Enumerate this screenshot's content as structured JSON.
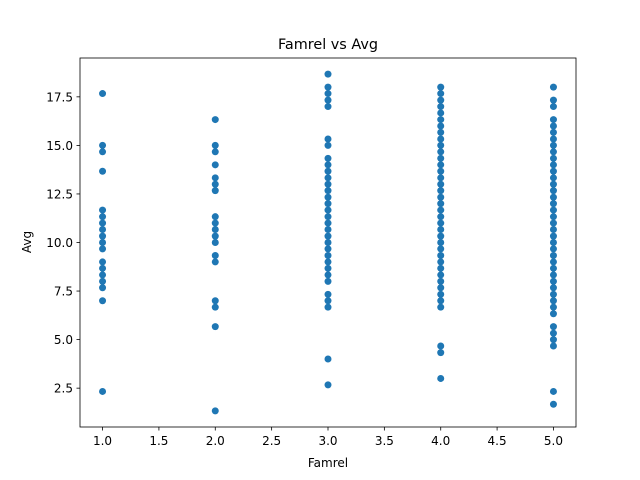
{
  "chart_data": {
    "type": "scatter",
    "title": "Famrel vs Avg",
    "xlabel": "Famrel",
    "ylabel": "Avg",
    "xlim": [
      0.8,
      5.2
    ],
    "ylim": [
      0.5,
      19.5
    ],
    "xticks": [
      "1.0",
      "1.5",
      "2.0",
      "2.5",
      "3.0",
      "3.5",
      "4.0",
      "4.5",
      "5.0"
    ],
    "yticks": [
      "2.5",
      "5.0",
      "7.5",
      "10.0",
      "12.5",
      "15.0",
      "17.5"
    ],
    "grid": false,
    "legend": "none",
    "marker_color": "#1f77b4",
    "series": [
      {
        "points": [
          {
            "x": 1,
            "y": 17.67
          },
          {
            "x": 1,
            "y": 15.0
          },
          {
            "x": 1,
            "y": 14.67
          },
          {
            "x": 1,
            "y": 13.67
          },
          {
            "x": 1,
            "y": 11.67
          },
          {
            "x": 1,
            "y": 11.33
          },
          {
            "x": 1,
            "y": 11.0
          },
          {
            "x": 1,
            "y": 10.67
          },
          {
            "x": 1,
            "y": 10.33
          },
          {
            "x": 1,
            "y": 10.0
          },
          {
            "x": 1,
            "y": 9.67
          },
          {
            "x": 1,
            "y": 9.0
          },
          {
            "x": 1,
            "y": 8.67
          },
          {
            "x": 1,
            "y": 8.33
          },
          {
            "x": 1,
            "y": 8.0
          },
          {
            "x": 1,
            "y": 7.67
          },
          {
            "x": 1,
            "y": 7.0
          },
          {
            "x": 1,
            "y": 2.33
          },
          {
            "x": 2,
            "y": 16.33
          },
          {
            "x": 2,
            "y": 15.0
          },
          {
            "x": 2,
            "y": 14.67
          },
          {
            "x": 2,
            "y": 14.0
          },
          {
            "x": 2,
            "y": 13.33
          },
          {
            "x": 2,
            "y": 13.0
          },
          {
            "x": 2,
            "y": 12.67
          },
          {
            "x": 2,
            "y": 11.33
          },
          {
            "x": 2,
            "y": 11.0
          },
          {
            "x": 2,
            "y": 10.67
          },
          {
            "x": 2,
            "y": 10.33
          },
          {
            "x": 2,
            "y": 10.0
          },
          {
            "x": 2,
            "y": 9.33
          },
          {
            "x": 2,
            "y": 9.0
          },
          {
            "x": 2,
            "y": 7.0
          },
          {
            "x": 2,
            "y": 6.67
          },
          {
            "x": 2,
            "y": 5.67
          },
          {
            "x": 2,
            "y": 1.33
          },
          {
            "x": 3,
            "y": 18.67
          },
          {
            "x": 3,
            "y": 18.0
          },
          {
            "x": 3,
            "y": 17.67
          },
          {
            "x": 3,
            "y": 17.33
          },
          {
            "x": 3,
            "y": 17.0
          },
          {
            "x": 3,
            "y": 15.33
          },
          {
            "x": 3,
            "y": 15.0
          },
          {
            "x": 3,
            "y": 14.33
          },
          {
            "x": 3,
            "y": 14.0
          },
          {
            "x": 3,
            "y": 13.67
          },
          {
            "x": 3,
            "y": 13.33
          },
          {
            "x": 3,
            "y": 13.0
          },
          {
            "x": 3,
            "y": 12.67
          },
          {
            "x": 3,
            "y": 12.33
          },
          {
            "x": 3,
            "y": 12.0
          },
          {
            "x": 3,
            "y": 11.67
          },
          {
            "x": 3,
            "y": 11.33
          },
          {
            "x": 3,
            "y": 11.0
          },
          {
            "x": 3,
            "y": 10.67
          },
          {
            "x": 3,
            "y": 10.33
          },
          {
            "x": 3,
            "y": 10.0
          },
          {
            "x": 3,
            "y": 9.67
          },
          {
            "x": 3,
            "y": 9.33
          },
          {
            "x": 3,
            "y": 9.0
          },
          {
            "x": 3,
            "y": 8.67
          },
          {
            "x": 3,
            "y": 8.33
          },
          {
            "x": 3,
            "y": 8.0
          },
          {
            "x": 3,
            "y": 7.33
          },
          {
            "x": 3,
            "y": 7.0
          },
          {
            "x": 3,
            "y": 6.67
          },
          {
            "x": 3,
            "y": 4.0
          },
          {
            "x": 3,
            "y": 2.67
          },
          {
            "x": 4,
            "y": 18.0
          },
          {
            "x": 4,
            "y": 17.67
          },
          {
            "x": 4,
            "y": 17.33
          },
          {
            "x": 4,
            "y": 17.0
          },
          {
            "x": 4,
            "y": 16.67
          },
          {
            "x": 4,
            "y": 16.33
          },
          {
            "x": 4,
            "y": 16.0
          },
          {
            "x": 4,
            "y": 15.67
          },
          {
            "x": 4,
            "y": 15.33
          },
          {
            "x": 4,
            "y": 15.0
          },
          {
            "x": 4,
            "y": 14.67
          },
          {
            "x": 4,
            "y": 14.33
          },
          {
            "x": 4,
            "y": 14.0
          },
          {
            "x": 4,
            "y": 13.67
          },
          {
            "x": 4,
            "y": 13.33
          },
          {
            "x": 4,
            "y": 13.0
          },
          {
            "x": 4,
            "y": 12.67
          },
          {
            "x": 4,
            "y": 12.33
          },
          {
            "x": 4,
            "y": 12.0
          },
          {
            "x": 4,
            "y": 11.67
          },
          {
            "x": 4,
            "y": 11.33
          },
          {
            "x": 4,
            "y": 11.0
          },
          {
            "x": 4,
            "y": 10.67
          },
          {
            "x": 4,
            "y": 10.33
          },
          {
            "x": 4,
            "y": 10.0
          },
          {
            "x": 4,
            "y": 9.67
          },
          {
            "x": 4,
            "y": 9.33
          },
          {
            "x": 4,
            "y": 9.0
          },
          {
            "x": 4,
            "y": 8.67
          },
          {
            "x": 4,
            "y": 8.33
          },
          {
            "x": 4,
            "y": 8.0
          },
          {
            "x": 4,
            "y": 7.67
          },
          {
            "x": 4,
            "y": 7.33
          },
          {
            "x": 4,
            "y": 7.0
          },
          {
            "x": 4,
            "y": 6.67
          },
          {
            "x": 4,
            "y": 4.67
          },
          {
            "x": 4,
            "y": 4.33
          },
          {
            "x": 4,
            "y": 3.0
          },
          {
            "x": 5,
            "y": 18.0
          },
          {
            "x": 5,
            "y": 17.33
          },
          {
            "x": 5,
            "y": 17.0
          },
          {
            "x": 5,
            "y": 16.33
          },
          {
            "x": 5,
            "y": 16.0
          },
          {
            "x": 5,
            "y": 15.67
          },
          {
            "x": 5,
            "y": 15.33
          },
          {
            "x": 5,
            "y": 15.0
          },
          {
            "x": 5,
            "y": 14.67
          },
          {
            "x": 5,
            "y": 14.33
          },
          {
            "x": 5,
            "y": 14.0
          },
          {
            "x": 5,
            "y": 13.67
          },
          {
            "x": 5,
            "y": 13.33
          },
          {
            "x": 5,
            "y": 13.0
          },
          {
            "x": 5,
            "y": 12.67
          },
          {
            "x": 5,
            "y": 12.33
          },
          {
            "x": 5,
            "y": 12.0
          },
          {
            "x": 5,
            "y": 11.67
          },
          {
            "x": 5,
            "y": 11.33
          },
          {
            "x": 5,
            "y": 11.0
          },
          {
            "x": 5,
            "y": 10.67
          },
          {
            "x": 5,
            "y": 10.33
          },
          {
            "x": 5,
            "y": 10.0
          },
          {
            "x": 5,
            "y": 9.67
          },
          {
            "x": 5,
            "y": 9.33
          },
          {
            "x": 5,
            "y": 9.0
          },
          {
            "x": 5,
            "y": 8.67
          },
          {
            "x": 5,
            "y": 8.33
          },
          {
            "x": 5,
            "y": 8.0
          },
          {
            "x": 5,
            "y": 7.67
          },
          {
            "x": 5,
            "y": 7.33
          },
          {
            "x": 5,
            "y": 7.0
          },
          {
            "x": 5,
            "y": 6.67
          },
          {
            "x": 5,
            "y": 6.33
          },
          {
            "x": 5,
            "y": 5.67
          },
          {
            "x": 5,
            "y": 5.33
          },
          {
            "x": 5,
            "y": 5.0
          },
          {
            "x": 5,
            "y": 4.67
          },
          {
            "x": 5,
            "y": 2.33
          },
          {
            "x": 5,
            "y": 1.67
          }
        ]
      }
    ]
  }
}
